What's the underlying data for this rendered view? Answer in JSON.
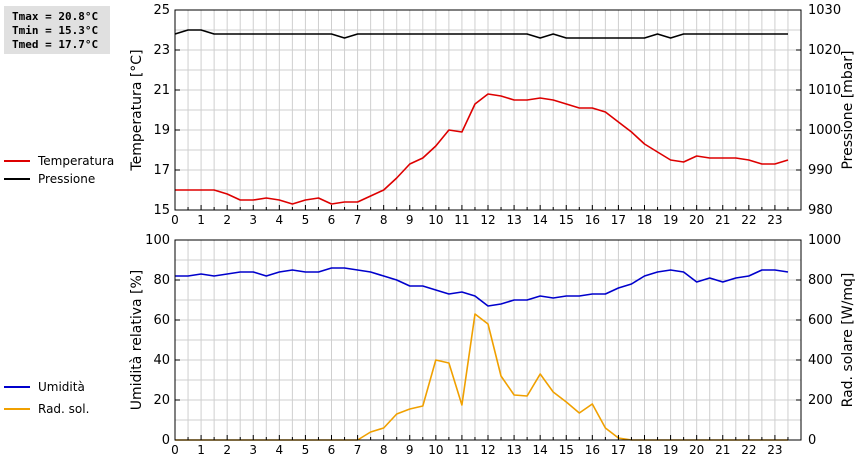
{
  "stats": {
    "tmax": "Tmax = 20.8°C",
    "tmin": "Tmin = 15.3°C",
    "tmed": "Tmed = 17.7°C"
  },
  "legends": {
    "top": [
      {
        "label": "Temperatura",
        "color": "#dd0000"
      },
      {
        "label": "Pressione",
        "color": "#000000"
      }
    ],
    "bottom": [
      {
        "label": "Umidità",
        "color": "#0000cc"
      },
      {
        "label": "Rad. sol.",
        "color": "#f0a000"
      }
    ]
  },
  "chart_data": [
    {
      "type": "line",
      "xlim": [
        0,
        24
      ],
      "x_ticks": [
        "0",
        "1",
        "2",
        "3",
        "4",
        "5",
        "6",
        "7",
        "8",
        "9",
        "10",
        "11",
        "12",
        "13",
        "14",
        "15",
        "16",
        "17",
        "18",
        "19",
        "20",
        "21",
        "22",
        "23"
      ],
      "ylabel": "Temperatura [°C]",
      "ylim": [
        15,
        25
      ],
      "y_ticks": [
        "15",
        "17",
        "19",
        "21",
        "23",
        "25"
      ],
      "y2label": "Pressione [mbar]",
      "y2lim": [
        980,
        1030
      ],
      "y2_ticks": [
        "980",
        "990",
        "1000",
        "1010",
        "1020",
        "1030"
      ],
      "grid": true,
      "series": [
        {
          "name": "Temperatura",
          "color": "#dd0000",
          "axis": "left",
          "x": [
            0,
            0.5,
            1,
            1.5,
            2,
            2.5,
            3,
            3.5,
            4,
            4.5,
            5,
            5.5,
            6,
            6.5,
            7,
            7.5,
            8,
            8.5,
            9,
            9.5,
            10,
            10.5,
            11,
            11.5,
            12,
            12.5,
            13,
            13.5,
            14,
            14.5,
            15,
            15.5,
            16,
            16.5,
            17,
            17.5,
            18,
            18.5,
            19,
            19.5,
            20,
            20.5,
            21,
            21.5,
            22,
            22.5,
            23,
            23.5
          ],
          "y": [
            16.0,
            16.0,
            16.0,
            16.0,
            15.8,
            15.5,
            15.5,
            15.6,
            15.5,
            15.3,
            15.5,
            15.6,
            15.3,
            15.4,
            15.4,
            15.7,
            16.0,
            16.6,
            17.3,
            17.6,
            18.2,
            19.0,
            18.9,
            20.3,
            20.8,
            20.7,
            20.5,
            20.5,
            20.6,
            20.5,
            20.3,
            20.1,
            20.1,
            19.9,
            19.4,
            18.9,
            18.3,
            17.9,
            17.5,
            17.4,
            17.7,
            17.6,
            17.6,
            17.6,
            17.5,
            17.3,
            17.3,
            17.5
          ]
        },
        {
          "name": "Pressione",
          "color": "#000000",
          "axis": "right",
          "x": [
            0,
            0.5,
            1,
            1.5,
            2,
            2.5,
            3,
            3.5,
            4,
            4.5,
            5,
            5.5,
            6,
            6.5,
            7,
            7.5,
            8,
            8.5,
            9,
            9.5,
            10,
            10.5,
            11,
            11.5,
            12,
            12.5,
            13,
            13.5,
            14,
            14.5,
            15,
            15.5,
            16,
            16.5,
            17,
            17.5,
            18,
            18.5,
            19,
            19.5,
            20,
            20.5,
            21,
            21.5,
            22,
            22.5,
            23,
            23.5
          ],
          "y": [
            1024,
            1025,
            1025,
            1024,
            1024,
            1024,
            1024,
            1024,
            1024,
            1024,
            1024,
            1024,
            1024,
            1023,
            1024,
            1024,
            1024,
            1024,
            1024,
            1024,
            1024,
            1024,
            1024,
            1024,
            1024,
            1024,
            1024,
            1024,
            1023,
            1024,
            1023,
            1023,
            1023,
            1023,
            1023,
            1023,
            1023,
            1024,
            1023,
            1024,
            1024,
            1024,
            1024,
            1024,
            1024,
            1024,
            1024,
            1024
          ]
        }
      ]
    },
    {
      "type": "line",
      "xlim": [
        0,
        24
      ],
      "x_ticks": [
        "0",
        "1",
        "2",
        "3",
        "4",
        "5",
        "6",
        "7",
        "8",
        "9",
        "10",
        "11",
        "12",
        "13",
        "14",
        "15",
        "16",
        "17",
        "18",
        "19",
        "20",
        "21",
        "22",
        "23"
      ],
      "ylabel": "Umidità relativa [%]",
      "ylim": [
        0,
        100
      ],
      "y_ticks": [
        "0",
        "20",
        "40",
        "60",
        "80",
        "100"
      ],
      "y2label": "Rad. solare [W/mq]",
      "y2lim": [
        0,
        1000
      ],
      "y2_ticks": [
        "0",
        "200",
        "400",
        "600",
        "800",
        "1000"
      ],
      "grid": true,
      "series": [
        {
          "name": "Umidità",
          "color": "#0000cc",
          "axis": "left",
          "x": [
            0,
            0.5,
            1,
            1.5,
            2,
            2.5,
            3,
            3.5,
            4,
            4.5,
            5,
            5.5,
            6,
            6.5,
            7,
            7.5,
            8,
            8.5,
            9,
            9.5,
            10,
            10.5,
            11,
            11.5,
            12,
            12.5,
            13,
            13.5,
            14,
            14.5,
            15,
            15.5,
            16,
            16.5,
            17,
            17.5,
            18,
            18.5,
            19,
            19.5,
            20,
            20.5,
            21,
            21.5,
            22,
            22.5,
            23,
            23.5
          ],
          "y": [
            82,
            82,
            83,
            82,
            83,
            84,
            84,
            82,
            84,
            85,
            84,
            84,
            86,
            86,
            85,
            84,
            82,
            80,
            77,
            77,
            75,
            73,
            74,
            72,
            67,
            68,
            70,
            70,
            72,
            71,
            72,
            72,
            73,
            73,
            76,
            78,
            82,
            84,
            85,
            84,
            79,
            81,
            79,
            81,
            82,
            85,
            85,
            84
          ]
        },
        {
          "name": "Rad. sol.",
          "color": "#f0a000",
          "axis": "right",
          "x": [
            0,
            0.5,
            1,
            1.5,
            2,
            2.5,
            3,
            3.5,
            4,
            4.5,
            5,
            5.5,
            6,
            6.5,
            7,
            7.5,
            8,
            8.5,
            9,
            9.5,
            10,
            10.5,
            11,
            11.5,
            12,
            12.5,
            13,
            13.5,
            14,
            14.5,
            15,
            15.5,
            16,
            16.5,
            17,
            17.5,
            18,
            18.5,
            19,
            19.5,
            20,
            20.5,
            21,
            21.5,
            22,
            22.5,
            23,
            23.5
          ],
          "y": [
            0,
            0,
            0,
            0,
            0,
            0,
            0,
            0,
            0,
            0,
            0,
            0,
            0,
            0,
            0,
            40,
            60,
            130,
            155,
            170,
            400,
            385,
            175,
            630,
            580,
            320,
            225,
            220,
            330,
            240,
            190,
            135,
            180,
            60,
            10,
            0,
            0,
            0,
            0,
            0,
            0,
            0,
            0,
            0,
            0,
            0,
            0,
            0
          ]
        }
      ]
    }
  ]
}
